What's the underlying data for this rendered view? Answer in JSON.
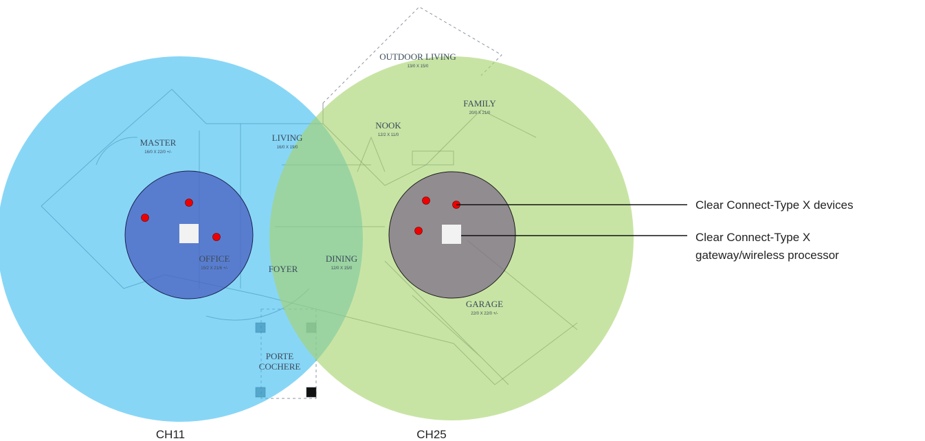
{
  "rooms": [
    {
      "name": "MASTER",
      "dims": "16/0 X 22/0 +/-"
    },
    {
      "name": "LIVING",
      "dims": "16/0 X 19/0"
    },
    {
      "name": "OFFICE",
      "dims": "15/2 X 21/6 +/-"
    },
    {
      "name": "FOYER"
    },
    {
      "name": "DINING",
      "dims": "12/0 X 15/0"
    },
    {
      "name": "NOOK",
      "dims": "12/2 X 11/0"
    },
    {
      "name": "FAMILY",
      "dims": "20/0 X 21/0"
    },
    {
      "name": "GARAGE",
      "dims": "22/0 X 22/0 +/-"
    },
    {
      "name": "OUTDOOR LIVING",
      "dims": "13/0 X 15/0"
    },
    {
      "name": "PORTE"
    },
    {
      "name": "COCHERE"
    }
  ],
  "callouts": {
    "devices": "Clear Connect-Type X devices",
    "gateway": [
      "Clear Connect-Type X",
      "gateway/wireless processor"
    ]
  },
  "channels": [
    "CH11",
    "CH25"
  ]
}
